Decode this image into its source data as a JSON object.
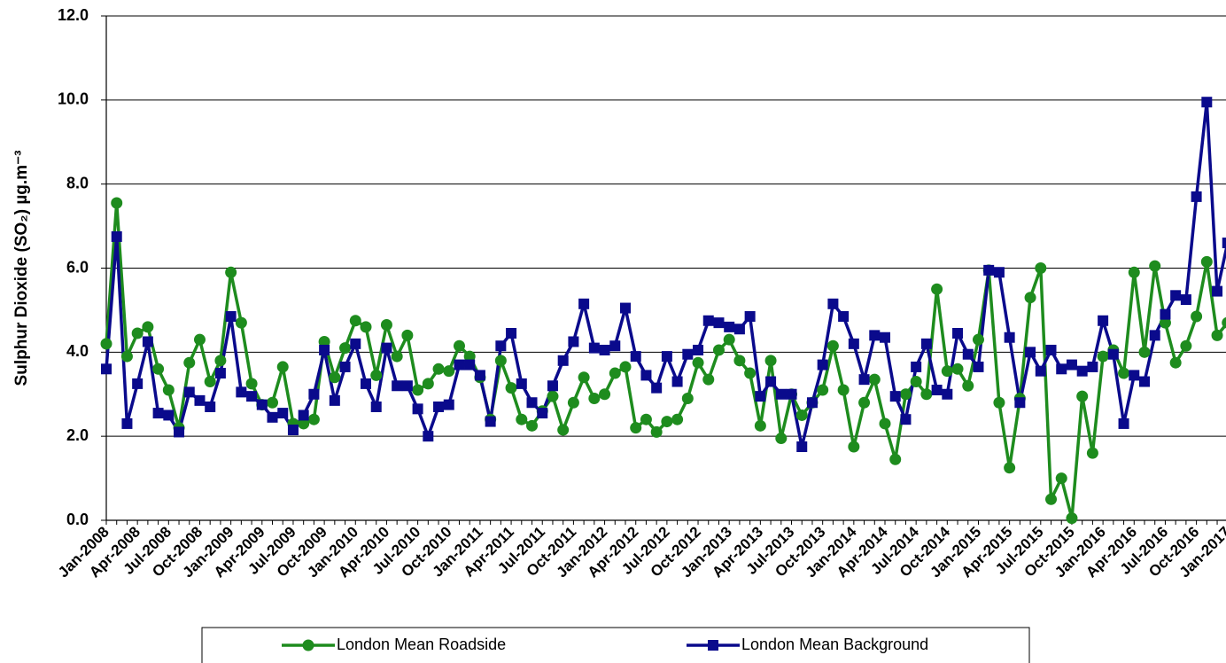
{
  "chart_data": {
    "type": "line",
    "y_label": "Sulphur Dioxide (SO₂) µg.m⁻³",
    "categories": [
      "Jan-2008",
      null,
      null,
      "Apr-2008",
      null,
      null,
      "Jul-2008",
      null,
      null,
      "Oct-2008",
      null,
      null,
      "Jan-2009",
      null,
      null,
      "Apr-2009",
      null,
      null,
      "Jul-2009",
      null,
      null,
      "Oct-2009",
      null,
      null,
      "Jan-2010",
      null,
      null,
      "Apr-2010",
      null,
      null,
      "Jul-2010",
      null,
      null,
      "Oct-2010",
      null,
      null,
      "Jan-2011",
      null,
      null,
      "Apr-2011",
      null,
      null,
      "Jul-2011",
      null,
      null,
      "Oct-2011",
      null,
      null,
      "Jan-2012",
      null,
      null,
      "Apr-2012",
      null,
      null,
      "Jul-2012",
      null,
      null,
      "Oct-2012",
      null,
      null,
      "Jan-2013",
      null,
      null,
      "Apr-2013",
      null,
      null,
      "Jul-2013",
      null,
      null,
      "Oct-2013",
      null,
      null,
      "Jan-2014",
      null,
      null,
      "Apr-2014",
      null,
      null,
      "Jul-2014",
      null,
      null,
      "Oct-2014",
      null,
      null,
      "Jan-2015",
      null,
      null,
      "Apr-2015",
      null,
      null,
      "Jul-2015",
      null,
      null,
      "Oct-2015",
      null,
      null,
      "Jan-2016",
      null,
      null,
      "Apr-2016",
      null,
      null,
      "Jul-2016",
      null,
      null,
      "Oct-2016",
      null,
      null,
      "Jan-2017"
    ],
    "series": [
      {
        "name": "London Mean Roadside",
        "color": "#1e8c1e",
        "marker": "circle",
        "values": [
          4.2,
          7.55,
          3.9,
          4.45,
          4.6,
          3.6,
          3.1,
          2.2,
          3.75,
          4.3,
          3.3,
          3.8,
          5.9,
          4.7,
          3.25,
          2.75,
          2.8,
          3.65,
          2.3,
          2.3,
          2.4,
          4.25,
          3.4,
          4.1,
          4.75,
          4.6,
          3.45,
          4.65,
          3.9,
          4.4,
          3.1,
          3.25,
          3.6,
          3.55,
          4.15,
          3.9,
          3.4,
          2.4,
          3.8,
          3.15,
          2.4,
          2.25,
          2.6,
          2.95,
          2.15,
          2.8,
          3.4,
          2.9,
          3.0,
          3.5,
          3.65,
          2.2,
          2.4,
          2.1,
          2.35,
          2.4,
          2.9,
          3.75,
          3.35,
          4.05,
          4.3,
          3.8,
          3.5,
          2.25,
          3.8,
          1.95,
          3.0,
          2.5,
          2.8,
          3.1,
          4.15,
          3.1,
          1.75,
          2.8,
          3.35,
          2.3,
          1.45,
          3.0,
          3.3,
          3.0,
          5.5,
          3.55,
          3.6,
          3.2,
          4.3,
          5.95,
          2.8,
          1.25,
          2.9,
          5.3,
          6.0,
          0.5,
          1.0,
          0.05,
          2.95,
          1.6,
          3.9,
          4.05,
          3.5,
          5.9,
          4.0,
          6.05,
          4.7,
          3.75,
          4.15,
          4.85,
          6.15,
          4.4,
          4.7
        ]
      },
      {
        "name": "London Mean Background",
        "color": "#0a0a8c",
        "marker": "square",
        "values": [
          3.6,
          6.75,
          2.3,
          3.25,
          4.25,
          2.55,
          2.5,
          2.1,
          3.05,
          2.85,
          2.7,
          3.5,
          4.85,
          3.05,
          2.95,
          2.75,
          2.45,
          2.55,
          2.15,
          2.5,
          3.0,
          4.05,
          2.85,
          3.65,
          4.2,
          3.25,
          2.7,
          4.1,
          3.2,
          3.2,
          2.65,
          2.0,
          2.7,
          2.75,
          3.7,
          3.7,
          3.45,
          2.35,
          4.15,
          4.45,
          3.25,
          2.8,
          2.55,
          3.2,
          3.8,
          4.25,
          5.15,
          4.1,
          4.05,
          4.15,
          5.05,
          3.9,
          3.45,
          3.15,
          3.9,
          3.3,
          3.95,
          4.05,
          4.75,
          4.7,
          4.6,
          4.55,
          4.85,
          2.95,
          3.3,
          3.0,
          3.0,
          1.75,
          2.8,
          3.7,
          5.15,
          4.85,
          4.2,
          3.35,
          4.4,
          4.35,
          2.95,
          2.4,
          3.65,
          4.2,
          3.1,
          3.0,
          4.45,
          3.95,
          3.65,
          5.95,
          5.9,
          4.35,
          2.8,
          4.0,
          3.55,
          4.05,
          3.6,
          3.7,
          3.55,
          3.65,
          4.75,
          3.95,
          2.3,
          3.45,
          3.3,
          4.4,
          4.9,
          5.35,
          5.25,
          7.7,
          9.95,
          5.45,
          6.6
        ]
      }
    ],
    "ylim": [
      0,
      12
    ],
    "yticks": [
      {
        "value": 0,
        "label": "0.0"
      },
      {
        "value": 2,
        "label": "2.0"
      },
      {
        "value": 4,
        "label": "4.0"
      },
      {
        "value": 6,
        "label": "6.0"
      },
      {
        "value": 8,
        "label": "8.0"
      },
      {
        "value": 10,
        "label": "10.0"
      },
      {
        "value": 12,
        "label": "12.0"
      }
    ],
    "grid": true,
    "legend": "bottom"
  }
}
